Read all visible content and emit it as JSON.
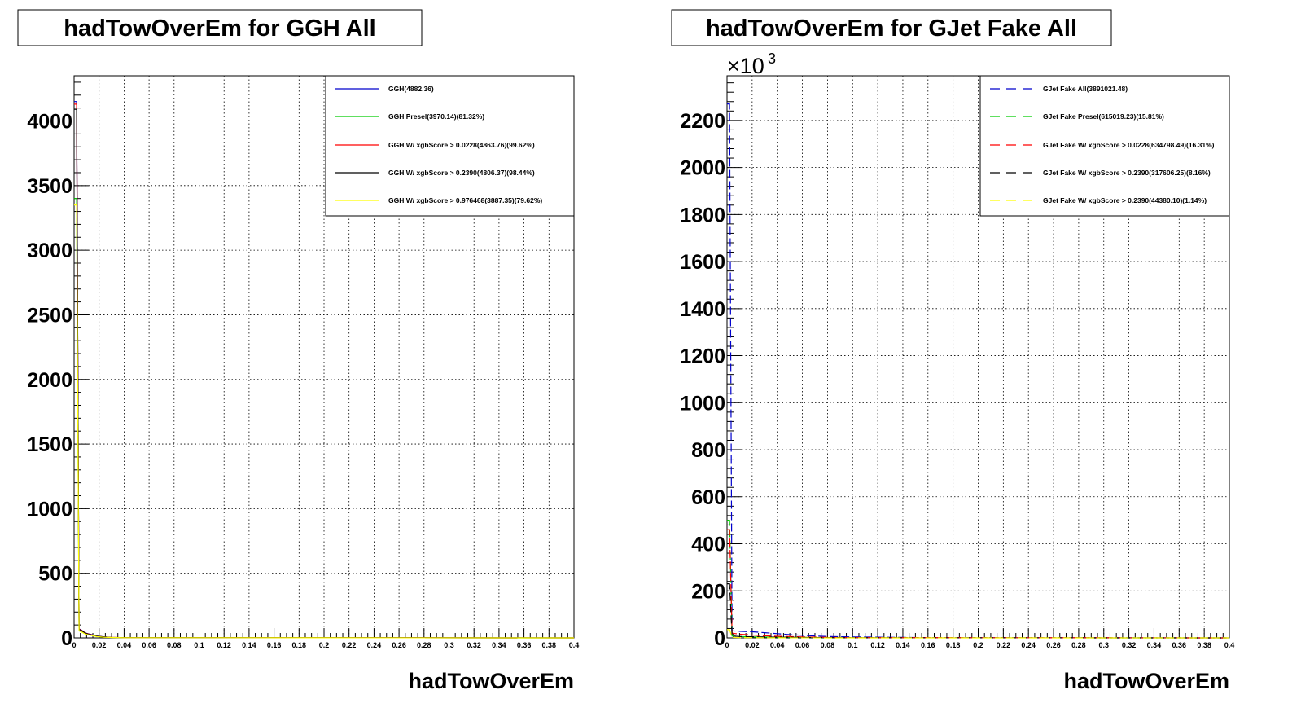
{
  "chart_data": [
    {
      "type": "line",
      "title": "hadTowOverEm for GGH All",
      "xlabel": "hadTowOverEm",
      "ylabel": "",
      "xlim": [
        0,
        0.4
      ],
      "ylim": [
        0,
        4350
      ],
      "y_exponent": "",
      "x_ticks": [
        "0",
        "0.02",
        "0.04",
        "0.06",
        "0.08",
        "0.1",
        "0.12",
        "0.14",
        "0.16",
        "0.18",
        "0.2",
        "0.22",
        "0.24",
        "0.26",
        "0.28",
        "0.3",
        "0.32",
        "0.34",
        "0.36",
        "0.38",
        "0.4"
      ],
      "y_ticks": [
        {
          "value": 0,
          "label": "0"
        },
        {
          "value": 500,
          "label": "500"
        },
        {
          "value": 1000,
          "label": "1000"
        },
        {
          "value": 1500,
          "label": "1500"
        },
        {
          "value": 2000,
          "label": "2000"
        },
        {
          "value": 2500,
          "label": "2500"
        },
        {
          "value": 3000,
          "label": "3000"
        },
        {
          "value": 3500,
          "label": "3500"
        },
        {
          "value": 4000,
          "label": "4000"
        }
      ],
      "grid": true,
      "legend_position": "top-right",
      "series": [
        {
          "name": "GGH(4882.36)",
          "color": "#0000cc",
          "dash": "solid",
          "x": [
            0,
            0.002,
            0.004,
            0.006,
            0.008,
            0.01,
            0.014,
            0.018,
            0.024,
            0.03,
            0.04,
            0.4
          ],
          "y": [
            4150,
            4150,
            70,
            60,
            45,
            35,
            25,
            15,
            8,
            4,
            2,
            0
          ]
        },
        {
          "name": "GGH Presel(3970.14)(81.32%)",
          "color": "#00cc00",
          "dash": "solid",
          "x": [
            0,
            0.002,
            0.004,
            0.006,
            0.008,
            0.01,
            0.014,
            0.018,
            0.024,
            0.03,
            0.04,
            0.4
          ],
          "y": [
            3400,
            3400,
            55,
            48,
            36,
            28,
            20,
            12,
            6,
            3,
            1,
            0
          ]
        },
        {
          "name": "GGH W/ xgbScore > 0.0228(4863.76)(99.62%)",
          "color": "#ff0000",
          "dash": "solid",
          "x": [
            0,
            0.002,
            0.004,
            0.006,
            0.008,
            0.01,
            0.014,
            0.018,
            0.024,
            0.03,
            0.04,
            0.4
          ],
          "y": [
            4130,
            4130,
            68,
            58,
            44,
            34,
            24,
            14,
            7,
            4,
            2,
            0
          ]
        },
        {
          "name": "GGH W/ xgbScore > 0.2390(4806.37)(98.44%)",
          "color": "#000000",
          "dash": "solid",
          "x": [
            0,
            0.002,
            0.004,
            0.006,
            0.008,
            0.01,
            0.014,
            0.018,
            0.024,
            0.03,
            0.04,
            0.4
          ],
          "y": [
            4090,
            4090,
            66,
            56,
            42,
            33,
            23,
            14,
            7,
            3,
            2,
            0
          ]
        },
        {
          "name": "GGH W/ xgbScore > 0.976468(3887.35)(79.62%)",
          "color": "#ffff00",
          "dash": "solid",
          "x": [
            0,
            0.002,
            0.004,
            0.006,
            0.008,
            0.01,
            0.014,
            0.018,
            0.024,
            0.03,
            0.04,
            0.4
          ],
          "y": [
            3350,
            3350,
            54,
            46,
            35,
            27,
            19,
            11,
            5,
            3,
            1,
            0
          ]
        }
      ]
    },
    {
      "type": "line",
      "title": "hadTowOverEm for GJet Fake All",
      "xlabel": "hadTowOverEm",
      "ylabel": "",
      "xlim": [
        0,
        0.4
      ],
      "ylim": [
        0,
        2390
      ],
      "y_exponent": "×10",
      "y_exponent_power": "3",
      "x_ticks": [
        "0",
        "0.02",
        "0.04",
        "0.06",
        "0.08",
        "0.1",
        "0.12",
        "0.14",
        "0.16",
        "0.18",
        "0.2",
        "0.22",
        "0.24",
        "0.26",
        "0.28",
        "0.3",
        "0.32",
        "0.34",
        "0.36",
        "0.38",
        "0.4"
      ],
      "y_ticks": [
        {
          "value": 0,
          "label": "0"
        },
        {
          "value": 200,
          "label": "200"
        },
        {
          "value": 400,
          "label": "400"
        },
        {
          "value": 600,
          "label": "600"
        },
        {
          "value": 800,
          "label": "800"
        },
        {
          "value": 1000,
          "label": "1000"
        },
        {
          "value": 1200,
          "label": "1200"
        },
        {
          "value": 1400,
          "label": "1400"
        },
        {
          "value": 1600,
          "label": "1600"
        },
        {
          "value": 1800,
          "label": "1800"
        },
        {
          "value": 2000,
          "label": "2000"
        },
        {
          "value": 2200,
          "label": "2200"
        }
      ],
      "grid": true,
      "legend_position": "top-right",
      "series": [
        {
          "name": "GJet Fake All(3891021.48)",
          "color": "#0000cc",
          "dash": "dashed",
          "x": [
            0,
            0.002,
            0.004,
            0.01,
            0.02,
            0.03,
            0.04,
            0.05,
            0.06,
            0.07,
            0.08,
            0.1,
            0.12,
            0.14,
            0.16,
            0.4
          ],
          "y": [
            2270,
            2270,
            30,
            28,
            26,
            22,
            18,
            14,
            11,
            8,
            6,
            4,
            3,
            2,
            1,
            0
          ]
        },
        {
          "name": "GJet Fake Presel(615019.23)(15.81%)",
          "color": "#00cc00",
          "dash": "dashed",
          "x": [
            0,
            0.002,
            0.004,
            0.01,
            0.02,
            0.04,
            0.06,
            0.08,
            0.1,
            0.4
          ],
          "y": [
            500,
            500,
            8,
            6,
            4,
            3,
            2,
            1,
            0.5,
            0
          ]
        },
        {
          "name": "GJet Fake W/ xgbScore > 0.0228(634798.49)(16.31%)",
          "color": "#ff0000",
          "dash": "dashed",
          "x": [
            0,
            0.002,
            0.004,
            0.01,
            0.02,
            0.03,
            0.04,
            0.06,
            0.08,
            0.1,
            0.4
          ],
          "y": [
            460,
            460,
            20,
            16,
            12,
            9,
            7,
            4,
            2,
            1,
            0
          ]
        },
        {
          "name": "GJet Fake W/ xgbScore > 0.2390(317606.25)(8.16%)",
          "color": "#000000",
          "dash": "dashed",
          "x": [
            0,
            0.002,
            0.004,
            0.01,
            0.02,
            0.04,
            0.06,
            0.08,
            0.1,
            0.4
          ],
          "y": [
            230,
            230,
            8,
            6,
            5,
            3,
            2,
            1,
            0.5,
            0
          ]
        },
        {
          "name": "GJet Fake W/ xgbScore > 0.2390(44380.10)(1.14%)",
          "color": "#ffff00",
          "dash": "dashed",
          "x": [
            0,
            0.002,
            0.004,
            0.01,
            0.02,
            0.04,
            0.1,
            0.4
          ],
          "y": [
            35,
            35,
            2,
            1,
            1,
            0.5,
            0,
            0
          ]
        }
      ]
    }
  ]
}
